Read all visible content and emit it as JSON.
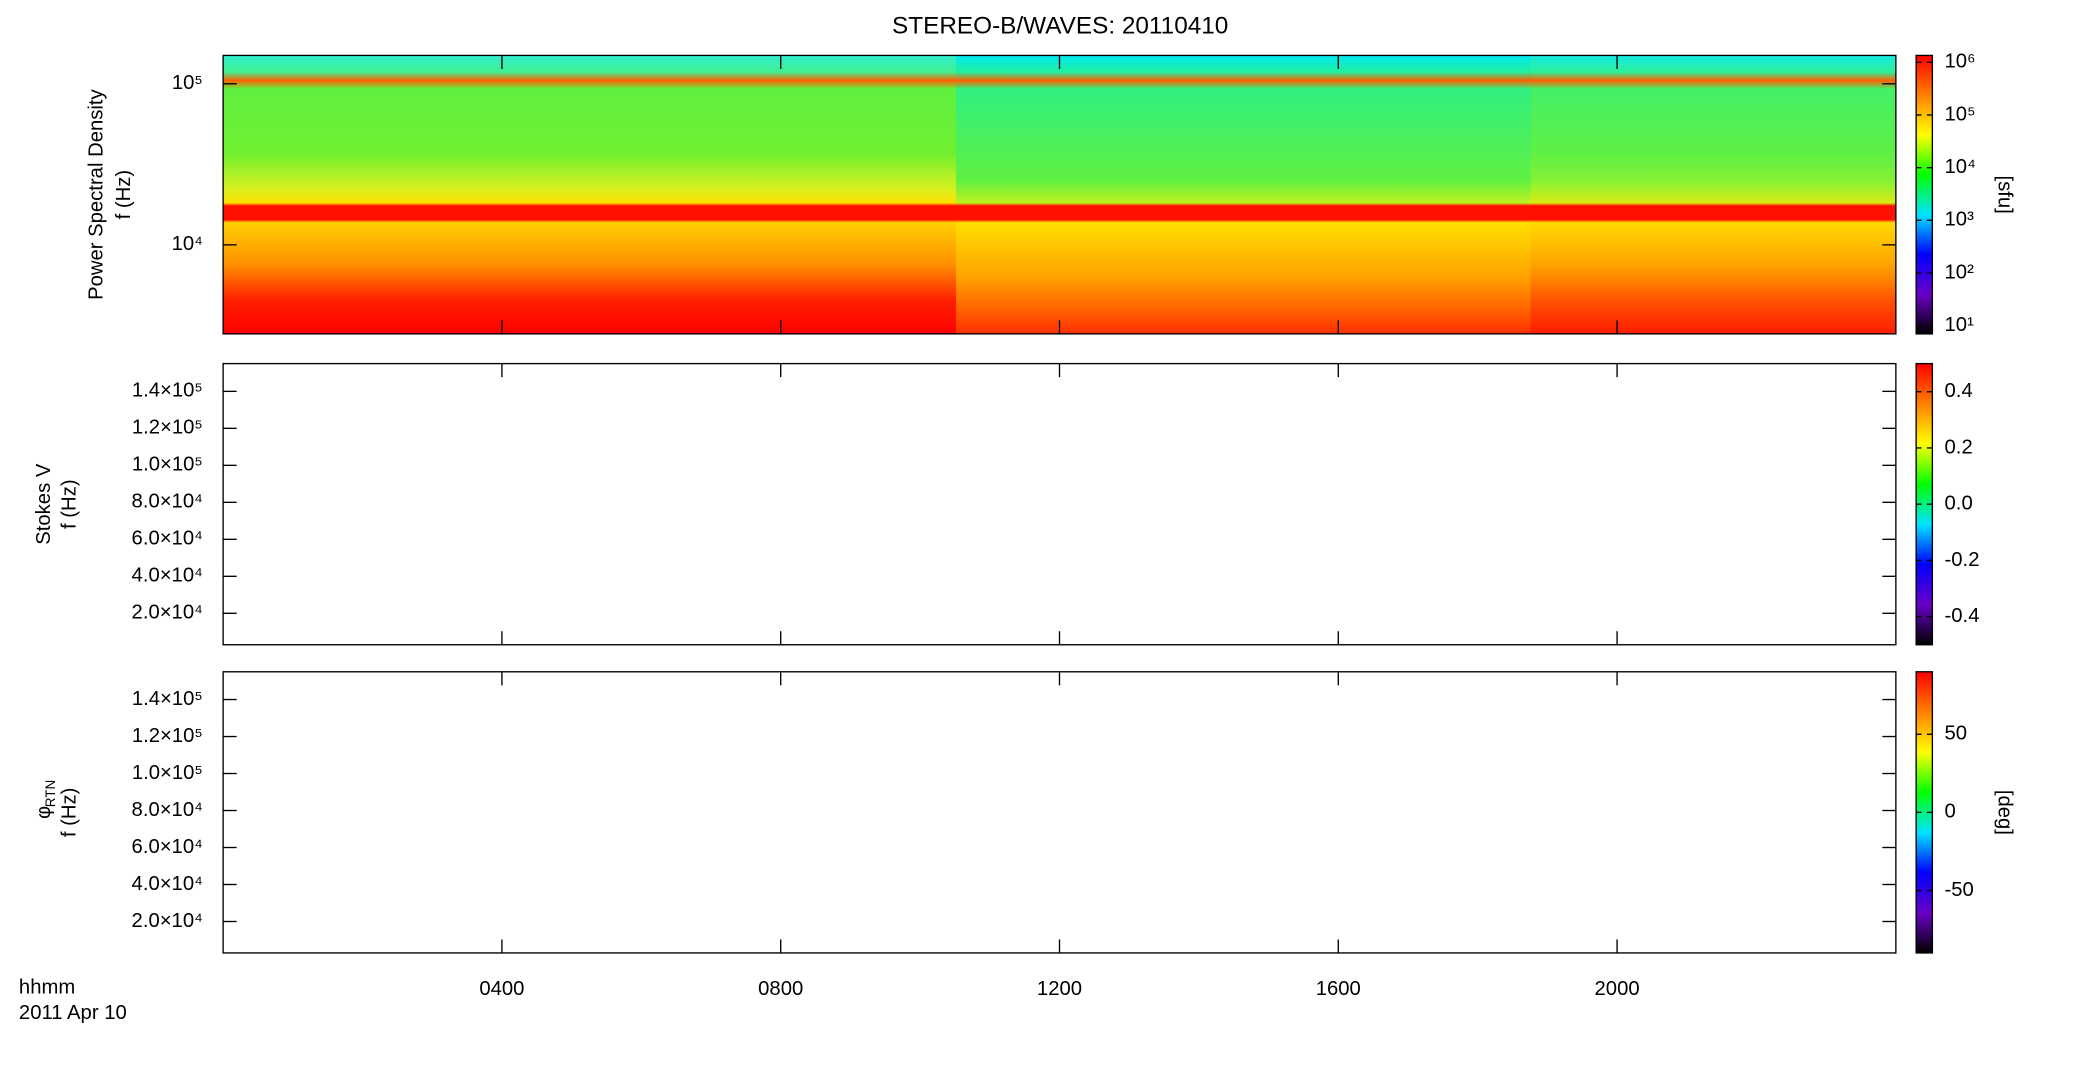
{
  "title": "STEREO-B/WAVES: 20110410",
  "x_axis": {
    "label": "hhmm",
    "date": "2011 Apr 10",
    "xlim": [
      0,
      24
    ],
    "xticks": [
      {
        "value": 4,
        "label": "0400"
      },
      {
        "value": 8,
        "label": "0800"
      },
      {
        "value": 12,
        "label": "1200"
      },
      {
        "value": 16,
        "label": "1600"
      },
      {
        "value": 20,
        "label": "2000"
      }
    ]
  },
  "colormap": [
    "#000000",
    "#6a00c8",
    "#0000ff",
    "#00e5ff",
    "#00ff00",
    "#ffff00",
    "#ff8000",
    "#ff0000"
  ],
  "chart_data": [
    {
      "type": "spectrogram",
      "ylabel": [
        "Power Spectral Density",
        "f (Hz)"
      ],
      "ylog": true,
      "ylim": [
        2800,
        150000
      ],
      "yticks": [
        {
          "value": 10000,
          "label": "10⁴"
        },
        {
          "value": 100000,
          "label": "10⁵"
        }
      ],
      "colorbar": {
        "label": "[sfu]",
        "log": true,
        "clim": [
          7,
          1350000
        ],
        "ticks": [
          {
            "value": 10,
            "label": "10¹"
          },
          {
            "value": 100,
            "label": "10²"
          },
          {
            "value": 1000,
            "label": "10³"
          },
          {
            "value": 10000,
            "label": "10⁴"
          },
          {
            "value": 100000,
            "label": "10⁵"
          },
          {
            "value": 1000000,
            "label": "10⁶"
          }
        ]
      }
    },
    {
      "type": "spectrogram",
      "ylabel": [
        "Stokes V",
        "f (Hz)"
      ],
      "ylog": false,
      "ylim": [
        3000,
        155000
      ],
      "yticks": [
        {
          "value": 20000,
          "label": "2.0×10⁴"
        },
        {
          "value": 40000,
          "label": "4.0×10⁴"
        },
        {
          "value": 60000,
          "label": "6.0×10⁴"
        },
        {
          "value": 80000,
          "label": "8.0×10⁴"
        },
        {
          "value": 100000,
          "label": "1.0×10⁵"
        },
        {
          "value": 120000,
          "label": "1.2×10⁵"
        },
        {
          "value": 140000,
          "label": "1.4×10⁵"
        }
      ],
      "colorbar": {
        "log": false,
        "clim": [
          -0.5,
          0.5
        ],
        "ticks": [
          -0.4,
          -0.2,
          {
            "value": 0,
            "label": "0.0"
          },
          0.2,
          0.4
        ]
      }
    },
    {
      "type": "spectrogram",
      "ylabel": [
        "φ",
        "f (Hz)"
      ],
      "ylabel_sub": "RTN",
      "ylog": false,
      "ylim": [
        3000,
        155000
      ],
      "yticks": [
        {
          "value": 20000,
          "label": "2.0×10⁴"
        },
        {
          "value": 40000,
          "label": "4.0×10⁴"
        },
        {
          "value": 60000,
          "label": "6.0×10⁴"
        },
        {
          "value": 80000,
          "label": "8.0×10⁴"
        },
        {
          "value": 100000,
          "label": "1.0×10⁵"
        },
        {
          "value": 120000,
          "label": "1.2×10⁵"
        },
        {
          "value": 140000,
          "label": "1.4×10⁵"
        }
      ],
      "colorbar": {
        "label": "[deg]",
        "log": false,
        "clim": [
          -90,
          90
        ],
        "ticks": [
          -50,
          0,
          50
        ]
      }
    }
  ]
}
